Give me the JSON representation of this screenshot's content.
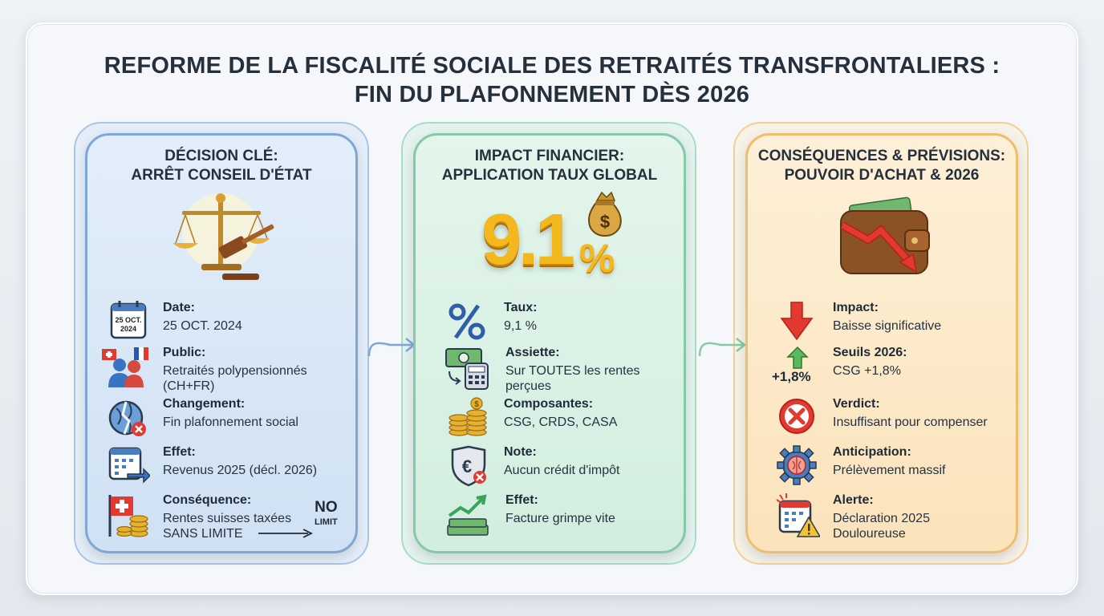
{
  "title": {
    "line1": "REFORME DE LA FISCALITÉ SOCIALE DES RETRAITÉS TRANSFRONTALIERS :",
    "line2": "FIN DU PLAFONNEMENT DÈS 2026"
  },
  "panels": [
    {
      "title_line1": "DÉCISION CLÉ:",
      "title_line2": "ARRÊT CONSEIL D'ÉTAT",
      "icon": "scales-gavel-icon",
      "calendar_line1": "25 OCT.",
      "calendar_line2": "2024",
      "rows": [
        {
          "icon": "calendar-icon",
          "label": "Date:",
          "value": "25 OCT. 2024"
        },
        {
          "icon": "people-flags-icon",
          "label": "Public:",
          "value": "Retraités polypensionnés",
          "value2": "(CH+FR)"
        },
        {
          "icon": "broken-globe-icon",
          "label": "Changement:",
          "value": "Fin plafonnement social"
        },
        {
          "icon": "calendar-arrow-icon",
          "label": "Effet:",
          "value": "Revenus 2025 (décl. 2026)"
        },
        {
          "icon": "swiss-flag-coins-icon",
          "label": "Conséquence:",
          "value": "Rentes suisses taxées",
          "value2": "SANS LIMITE"
        }
      ],
      "badge_line1": "NO",
      "badge_line2": "LIMIT"
    },
    {
      "title_line1": "IMPACT FINANCIER:",
      "title_line2": "APPLICATION TAUX GLOBAL",
      "big_number": "9.1",
      "big_unit": "%",
      "rows": [
        {
          "icon": "percent-icon",
          "label": "Taux:",
          "value": "9,1 %"
        },
        {
          "icon": "banknote-calculator-icon",
          "label": "Assiette:",
          "value": "Sur TOUTES les rentes",
          "value2": "perçues"
        },
        {
          "icon": "coins-stack-icon",
          "label": "Composantes:",
          "value": "CSG, CRDS, CASA"
        },
        {
          "icon": "euro-shield-icon",
          "label": "Note:",
          "value": "Aucun crédit d'impôt"
        },
        {
          "icon": "cash-trend-icon",
          "label": "Effet:",
          "value": "Facture grimpe vite"
        }
      ]
    },
    {
      "title_line1": "CONSÉQUENCES & PRÉVISIONS:",
      "title_line2": "POUVOIR D'ACHAT & 2026",
      "icon": "wallet-down-icon",
      "rows": [
        {
          "icon": "arrow-down-icon",
          "label": "Impact:",
          "value": "Baisse significative"
        },
        {
          "icon": "arrow-up-icon",
          "label": "Seuils 2026:",
          "value": "CSG +1,8%"
        },
        {
          "icon": "x-circle-icon",
          "label": "Verdict:",
          "value": "Insuffisant pour compenser"
        },
        {
          "icon": "gear-brain-icon",
          "label": "Anticipation:",
          "value": "Prélèvement massif"
        },
        {
          "icon": "calendar-warning-icon",
          "label": "Alerte:",
          "value": "Déclaration 2025",
          "value2": "Douloureuse"
        }
      ],
      "pct_label": "+1,8%"
    }
  ],
  "colors": {
    "blue_panel": "#cfe1f4",
    "green_panel": "#d2eedf",
    "orange_panel": "#fbe3bb",
    "gold": "#f3b81e",
    "red": "#e23a30",
    "green_accent": "#3aa35a"
  }
}
